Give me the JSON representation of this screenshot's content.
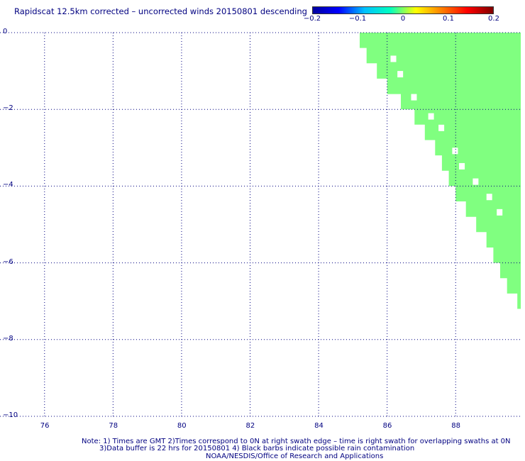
{
  "chart_data": {
    "type": "heatmap",
    "title": "Rapidscat 12.5km corrected – uncorrected winds 20150801 descending",
    "colorbar": {
      "ticks": [
        "−0.2",
        "−0.1",
        "0",
        "0.1",
        "0.2"
      ],
      "range": [
        -0.2,
        0.2
      ],
      "colors": [
        "#0000a0",
        "#0000ff",
        "#00c0ff",
        "#00ffc0",
        "#ffff00",
        "#ff8000",
        "#ff0000",
        "#800000"
      ]
    },
    "xlim": [
      74.7,
      89.9
    ],
    "ylim": [
      -10,
      0
    ],
    "x_ticks": [
      76,
      78,
      80,
      82,
      84,
      86,
      88
    ],
    "y_ticks": [
      0,
      -2,
      -4,
      -6,
      -8,
      -10
    ],
    "x_tick_labels": [
      "76",
      "78",
      "80",
      "82",
      "84",
      "86",
      "88"
    ],
    "y_tick_labels": [
      "0",
      "−2",
      "−4",
      "−6",
      "−8",
      "−10"
    ],
    "grid": true,
    "fill_value": 0,
    "fill_color": "#80ff80",
    "swath_rows": [
      {
        "y": 0.0,
        "x_start": 85.2
      },
      {
        "y": -0.4,
        "x_start": 85.4
      },
      {
        "y": -0.8,
        "x_start": 85.7
      },
      {
        "y": -1.2,
        "x_start": 86.0
      },
      {
        "y": -1.6,
        "x_start": 86.4
      },
      {
        "y": -2.0,
        "x_start": 86.8
      },
      {
        "y": -2.4,
        "x_start": 87.1
      },
      {
        "y": -2.8,
        "x_start": 87.4
      },
      {
        "y": -3.2,
        "x_start": 87.6
      },
      {
        "y": -3.6,
        "x_start": 87.8
      },
      {
        "y": -4.0,
        "x_start": 88.0
      },
      {
        "y": -4.4,
        "x_start": 88.3
      },
      {
        "y": -4.8,
        "x_start": 88.6
      },
      {
        "y": -5.2,
        "x_start": 88.9
      },
      {
        "y": -5.6,
        "x_start": 89.1
      },
      {
        "y": -6.0,
        "x_start": 89.3
      },
      {
        "y": -6.4,
        "x_start": 89.5
      },
      {
        "y": -6.8,
        "x_start": 89.8
      }
    ]
  },
  "notes": [
    "Note: 1) Times are GMT 2)Times correspond to 0N at right swath edge – time is right swath for overlapping swaths at 0N",
    "3)Data buffer is 22 hrs for 20150801 4) Black barbs indicate possible rain contamination",
    "NOAA/NESDIS/Office of Research and Applications"
  ]
}
